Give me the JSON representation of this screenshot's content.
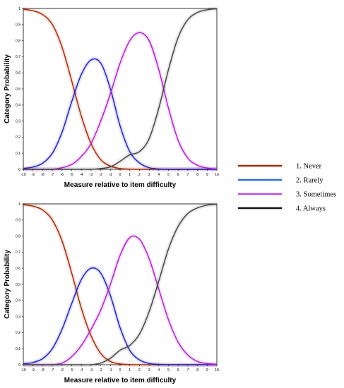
{
  "legend": {
    "items": [
      {
        "label": "1. Never",
        "color": "#a52a0a"
      },
      {
        "label": "2. Rarely",
        "color": "#2f6fe0"
      },
      {
        "label": "3. Sometimes",
        "color": "#b84cf0"
      },
      {
        "label": "4. Always",
        "color": "#111111"
      }
    ]
  },
  "chart_data": [
    {
      "type": "line",
      "xlabel": "Measure relative to item difficulty",
      "ylabel": "Category Probability",
      "xlim": [
        -10,
        10
      ],
      "ylim": [
        0,
        1
      ],
      "xticks": [
        "-10",
        "-9",
        "-8",
        "-7",
        "-6",
        "-5",
        "-4",
        "-3",
        "-2",
        "-1",
        "0",
        "1",
        "2",
        "3",
        "4",
        "5",
        "6",
        "7",
        "8",
        "9",
        "10"
      ],
      "yticks": [
        "0",
        "0.1",
        "0.2",
        "0.3",
        "0.4",
        "0.5",
        "0.6",
        "0.7",
        "0.8",
        "0.9",
        "1"
      ],
      "x": [
        -10,
        -9,
        -8,
        -7,
        -6,
        -5,
        -4,
        -3,
        -2,
        -1,
        0,
        1,
        2,
        3,
        4,
        5,
        6,
        7,
        8,
        9,
        10
      ],
      "series": [
        {
          "name": "1. Never",
          "color": "#a52a0a",
          "values": [
            0.995,
            0.986,
            0.962,
            0.9,
            0.76,
            0.55,
            0.33,
            0.16,
            0.06,
            0.02,
            0.005,
            0.001,
            0,
            0,
            0,
            0,
            0,
            0,
            0,
            0,
            0
          ]
        },
        {
          "name": "2. Rarely",
          "color": "#2020c0",
          "values": [
            0.005,
            0.014,
            0.038,
            0.1,
            0.23,
            0.42,
            0.59,
            0.68,
            0.66,
            0.5,
            0.27,
            0.11,
            0.04,
            0.01,
            0.002,
            0,
            0,
            0,
            0,
            0,
            0
          ]
        },
        {
          "name": "3. Sometimes",
          "color": "#b020d0",
          "values": [
            0,
            0,
            0,
            0,
            0.01,
            0.03,
            0.08,
            0.16,
            0.3,
            0.47,
            0.66,
            0.8,
            0.85,
            0.8,
            0.62,
            0.38,
            0.18,
            0.07,
            0.025,
            0.008,
            0.002
          ]
        },
        {
          "name": "4. Always",
          "color": "#444444",
          "values": [
            0,
            0,
            0,
            0,
            0,
            0,
            0,
            0,
            0.005,
            0.015,
            0.05,
            0.09,
            0.11,
            0.19,
            0.38,
            0.62,
            0.82,
            0.93,
            0.975,
            0.992,
            0.998
          ]
        }
      ]
    },
    {
      "type": "line",
      "xlabel": "Measure relative to item difficulty",
      "ylabel": "Category Probability",
      "xlim": [
        -10,
        10
      ],
      "ylim": [
        0,
        1
      ],
      "xticks": [
        "-10",
        "-9",
        "-8",
        "-7",
        "-6",
        "-5",
        "-4",
        "-3",
        "-2",
        "-1",
        "0",
        "1",
        "2",
        "3",
        "4",
        "5",
        "6",
        "7",
        "8",
        "9",
        "10"
      ],
      "yticks": [
        "0",
        "0.1",
        "0.2",
        "0.3",
        "0.4",
        "0.5",
        "0.6",
        "0.7",
        "0.8",
        "0.9",
        "1"
      ],
      "x": [
        -10,
        -9,
        -8,
        -7,
        -6,
        -5,
        -4,
        -3,
        -2,
        -1,
        0,
        1,
        2,
        3,
        4,
        5,
        6,
        7,
        8,
        9,
        10
      ],
      "series": [
        {
          "name": "1. Never",
          "color": "#a52a0a",
          "values": [
            0.995,
            0.986,
            0.962,
            0.9,
            0.77,
            0.57,
            0.35,
            0.18,
            0.07,
            0.02,
            0.005,
            0.001,
            0,
            0,
            0,
            0,
            0,
            0,
            0,
            0,
            0
          ]
        },
        {
          "name": "2. Rarely",
          "color": "#2020c0",
          "values": [
            0.005,
            0.014,
            0.038,
            0.1,
            0.22,
            0.38,
            0.53,
            0.6,
            0.57,
            0.43,
            0.23,
            0.09,
            0.03,
            0.008,
            0.002,
            0,
            0,
            0,
            0,
            0,
            0
          ]
        },
        {
          "name": "3. Sometimes",
          "color": "#b020d0",
          "values": [
            0,
            0,
            0,
            0,
            0.01,
            0.05,
            0.12,
            0.22,
            0.34,
            0.5,
            0.68,
            0.79,
            0.78,
            0.66,
            0.47,
            0.28,
            0.14,
            0.06,
            0.02,
            0.007,
            0.002
          ]
        },
        {
          "name": "4. Always",
          "color": "#444444",
          "values": [
            0,
            0,
            0,
            0,
            0,
            0,
            0,
            0,
            0.01,
            0.04,
            0.09,
            0.12,
            0.19,
            0.33,
            0.52,
            0.72,
            0.86,
            0.94,
            0.975,
            0.992,
            0.998
          ]
        }
      ]
    }
  ]
}
